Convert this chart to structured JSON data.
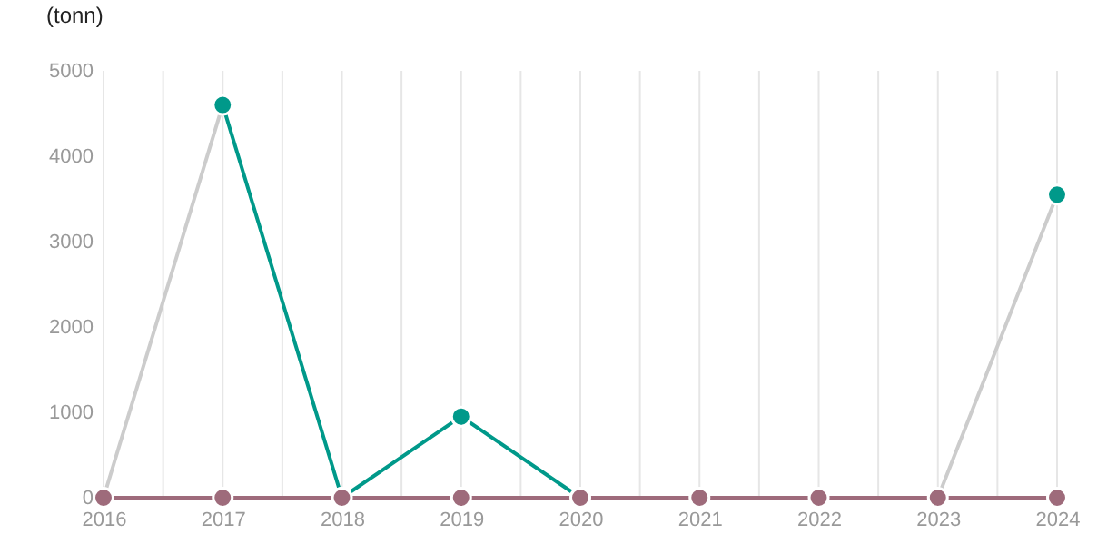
{
  "chart_data": {
    "type": "line",
    "ylabel": "(tonn)",
    "x": [
      2016,
      2017,
      2018,
      2019,
      2020,
      2021,
      2022,
      2023,
      2024
    ],
    "series": [
      {
        "color": "#cccccc",
        "marker": "none",
        "values": [
          0,
          4600,
          null,
          null,
          null,
          null,
          null,
          0,
          3550
        ]
      },
      {
        "color": "#00998a",
        "values": [
          null,
          4600,
          0,
          950,
          0,
          null,
          null,
          null,
          3550
        ]
      },
      {
        "color": "#9e6b7b",
        "values": [
          0,
          0,
          0,
          0,
          0,
          0,
          0,
          0,
          0
        ]
      }
    ],
    "xlim": [
      2016,
      2024
    ],
    "xticks": [
      2016,
      {
        "value": 2016.5,
        "label": null
      },
      2017,
      {
        "value": 2017.5,
        "label": null
      },
      2018,
      {
        "value": 2018.5,
        "label": null
      },
      2019,
      {
        "value": 2019.5,
        "label": null
      },
      2020,
      {
        "value": 2020.5,
        "label": null
      },
      2021,
      {
        "value": 2021.5,
        "label": null
      },
      2022,
      {
        "value": 2022.5,
        "label": null
      },
      2023,
      {
        "value": 2023.5,
        "label": null
      },
      2024
    ],
    "ylim": [
      0,
      5000
    ],
    "yticks": [
      0,
      1000,
      2000,
      3000,
      4000,
      5000
    ],
    "grid": "x",
    "marker": "circle"
  }
}
